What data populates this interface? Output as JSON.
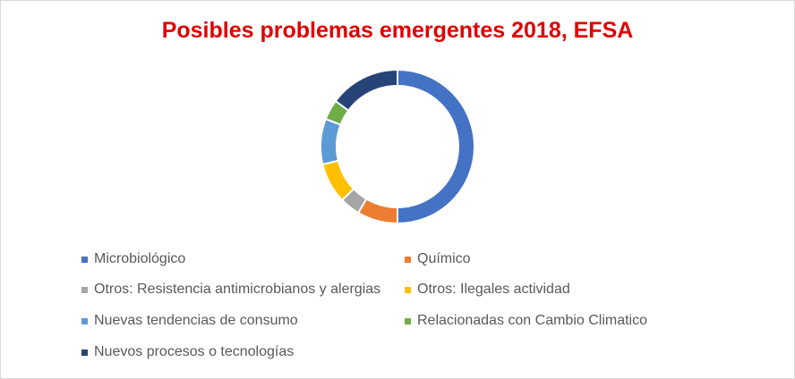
{
  "chart_data": {
    "type": "pie",
    "variant": "donut",
    "title": "Posibles problemas emergentes 2018, EFSA",
    "categories": [
      "Microbiológico",
      "Químico",
      "Otros: Resistencia antimicrobianos y alergias",
      "Otros: Ilegales actividad",
      "Nuevas tendencias de consumo",
      "Relacionadas con Cambio Climatico",
      "Nuevos procesos o tecnologías"
    ],
    "values": [
      47,
      8,
      4,
      8,
      9,
      4,
      14
    ],
    "colors": [
      "#4472c4",
      "#ed7d31",
      "#a5a5a5",
      "#ffc000",
      "#5b9bd5",
      "#70ad47",
      "#264478"
    ],
    "legend_position": "bottom",
    "title_color": "#e00000"
  }
}
